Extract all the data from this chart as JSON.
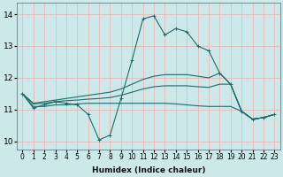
{
  "xlabel": "Humidex (Indice chaleur)",
  "xlim": [
    -0.5,
    23.5
  ],
  "ylim": [
    9.75,
    14.35
  ],
  "xticks": [
    0,
    1,
    2,
    3,
    4,
    5,
    6,
    7,
    8,
    9,
    10,
    11,
    12,
    13,
    14,
    15,
    16,
    17,
    18,
    19,
    20,
    21,
    22,
    23
  ],
  "yticks": [
    10,
    11,
    12,
    13,
    14
  ],
  "background_color": "#cce8e8",
  "grid_color": "#e8b8b8",
  "line_color": "#1e6b6b",
  "curves": [
    {
      "x": [
        0,
        1,
        2,
        3,
        4,
        5,
        6,
        7,
        8,
        9,
        10,
        11,
        12,
        13,
        14,
        15,
        16,
        17,
        18,
        19,
        20,
        21,
        22,
        23
      ],
      "y": [
        11.5,
        11.05,
        11.15,
        11.25,
        11.2,
        11.15,
        10.85,
        10.05,
        10.2,
        11.35,
        12.55,
        13.85,
        13.95,
        13.35,
        13.55,
        13.45,
        13.0,
        12.85,
        12.15,
        11.8,
        10.95,
        10.7,
        10.75,
        10.85
      ],
      "marker": true
    },
    {
      "x": [
        0,
        1,
        2,
        3,
        4,
        5,
        6,
        7,
        8,
        9,
        10,
        11,
        12,
        13,
        14,
        15,
        16,
        17,
        18,
        19,
        20,
        21,
        22,
        23
      ],
      "y": [
        11.5,
        11.2,
        11.25,
        11.3,
        11.35,
        11.4,
        11.45,
        11.5,
        11.55,
        11.65,
        11.8,
        11.95,
        12.05,
        12.1,
        12.1,
        12.1,
        12.05,
        12.0,
        12.15,
        11.8,
        10.95,
        10.7,
        10.75,
        10.85
      ],
      "marker": false
    },
    {
      "x": [
        0,
        1,
        2,
        3,
        4,
        5,
        6,
        7,
        8,
        9,
        10,
        11,
        12,
        13,
        14,
        15,
        16,
        17,
        18,
        19,
        20,
        21,
        22,
        23
      ],
      "y": [
        11.5,
        11.18,
        11.2,
        11.25,
        11.28,
        11.3,
        11.33,
        11.35,
        11.38,
        11.45,
        11.55,
        11.65,
        11.72,
        11.75,
        11.75,
        11.75,
        11.72,
        11.7,
        11.8,
        11.8,
        10.95,
        10.7,
        10.75,
        10.85
      ],
      "marker": false
    },
    {
      "x": [
        0,
        1,
        2,
        3,
        4,
        5,
        6,
        7,
        8,
        9,
        10,
        11,
        12,
        13,
        14,
        15,
        16,
        17,
        18,
        19,
        20,
        21,
        22,
        23
      ],
      "y": [
        11.5,
        11.1,
        11.1,
        11.15,
        11.15,
        11.18,
        11.2,
        11.2,
        11.2,
        11.2,
        11.2,
        11.2,
        11.2,
        11.2,
        11.18,
        11.15,
        11.12,
        11.1,
        11.1,
        11.1,
        10.95,
        10.7,
        10.75,
        10.85
      ],
      "marker": false
    }
  ]
}
